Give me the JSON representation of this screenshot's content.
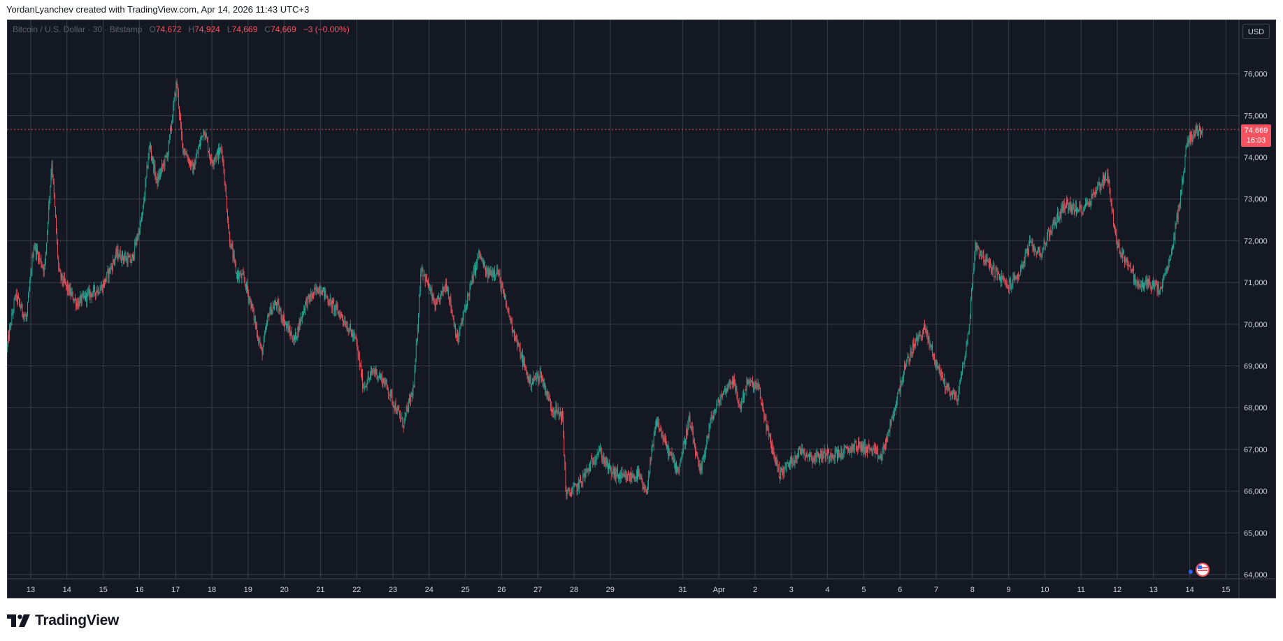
{
  "caption": "YordanLyanchev created with TradingView.com, Apr 14, 2026 11:43 UTC+3",
  "legend": {
    "symbol": "Bitcoin / U.S. Dollar · 30 · Bitstamp",
    "o_label": "O",
    "o_value": "74,672",
    "h_label": "H",
    "h_value": "74,924",
    "l_label": "L",
    "l_value": "74,669",
    "c_label": "C",
    "c_value": "74,669",
    "change": "−3 (−0.00%)"
  },
  "currency_button": "USD",
  "last_price": {
    "value": "74,669",
    "countdown": "16:03"
  },
  "brand": {
    "name": "TradingView",
    "logo_icon": "tradingview-logo-icon"
  },
  "colors": {
    "background": "#141823",
    "grid": "#3b3f4a",
    "up": "#22ab94",
    "down": "#f7525f",
    "axis_text": "#d1d4dc"
  },
  "chart_data": {
    "type": "candlestick",
    "title": "Bitcoin / U.S. Dollar · 30 · Bitstamp",
    "timeframe": "30",
    "ylim": [
      63900,
      77300
    ],
    "y_ticks": [
      64000,
      65000,
      66000,
      67000,
      68000,
      69000,
      70000,
      71000,
      72000,
      73000,
      74000,
      75000,
      76000
    ],
    "y_tick_labels": [
      "64,000",
      "65,000",
      "66,000",
      "67,000",
      "68,000",
      "69,000",
      "70,000",
      "71,000",
      "72,000",
      "73,000",
      "74,000",
      "75,000",
      "76,000"
    ],
    "x_ticks": [
      {
        "label": "13",
        "day": 0
      },
      {
        "label": "14",
        "day": 1
      },
      {
        "label": "15",
        "day": 2
      },
      {
        "label": "16",
        "day": 3
      },
      {
        "label": "17",
        "day": 4
      },
      {
        "label": "18",
        "day": 5
      },
      {
        "label": "19",
        "day": 6
      },
      {
        "label": "20",
        "day": 7
      },
      {
        "label": "21",
        "day": 8
      },
      {
        "label": "22",
        "day": 9
      },
      {
        "label": "23",
        "day": 10
      },
      {
        "label": "24",
        "day": 11
      },
      {
        "label": "25",
        "day": 12
      },
      {
        "label": "26",
        "day": 13
      },
      {
        "label": "27",
        "day": 14
      },
      {
        "label": "28",
        "day": 15
      },
      {
        "label": "29",
        "day": 16
      },
      {
        "label": "31",
        "day": 18
      },
      {
        "label": "Apr",
        "day": 19
      },
      {
        "label": "2",
        "day": 20
      },
      {
        "label": "3",
        "day": 21
      },
      {
        "label": "4",
        "day": 22
      },
      {
        "label": "5",
        "day": 23
      },
      {
        "label": "6",
        "day": 24
      },
      {
        "label": "7",
        "day": 25
      },
      {
        "label": "8",
        "day": 26
      },
      {
        "label": "9",
        "day": 27
      },
      {
        "label": "10",
        "day": 28
      },
      {
        "label": "11",
        "day": 29
      },
      {
        "label": "12",
        "day": 30
      },
      {
        "label": "13",
        "day": 31
      },
      {
        "label": "14",
        "day": 32
      },
      {
        "label": "15",
        "day": 33
      }
    ],
    "x_range_days": [
      -0.65,
      33.45
    ],
    "last_price": 74669,
    "price_path": [
      [
        -0.65,
        69400
      ],
      [
        -0.4,
        70700
      ],
      [
        -0.1,
        70100
      ],
      [
        0.1,
        71900
      ],
      [
        0.4,
        71300
      ],
      [
        0.6,
        73900
      ],
      [
        0.8,
        71200
      ],
      [
        1.0,
        70900
      ],
      [
        1.3,
        70500
      ],
      [
        1.6,
        70700
      ],
      [
        2.0,
        70900
      ],
      [
        2.4,
        71700
      ],
      [
        2.8,
        71500
      ],
      [
        3.1,
        72600
      ],
      [
        3.3,
        74300
      ],
      [
        3.5,
        73400
      ],
      [
        3.8,
        74100
      ],
      [
        4.05,
        75800
      ],
      [
        4.2,
        74300
      ],
      [
        4.5,
        73700
      ],
      [
        4.8,
        74700
      ],
      [
        5.0,
        73900
      ],
      [
        5.3,
        74200
      ],
      [
        5.5,
        72100
      ],
      [
        5.7,
        71200
      ],
      [
        5.9,
        71100
      ],
      [
        6.1,
        70500
      ],
      [
        6.4,
        69300
      ],
      [
        6.6,
        70300
      ],
      [
        6.8,
        70500
      ],
      [
        7.0,
        70100
      ],
      [
        7.3,
        69600
      ],
      [
        7.6,
        70500
      ],
      [
        8.0,
        70900
      ],
      [
        8.3,
        70500
      ],
      [
        8.6,
        70200
      ],
      [
        9.0,
        69600
      ],
      [
        9.2,
        68500
      ],
      [
        9.5,
        68900
      ],
      [
        9.8,
        68600
      ],
      [
        10.0,
        68200
      ],
      [
        10.3,
        67600
      ],
      [
        10.6,
        68500
      ],
      [
        10.8,
        71400
      ],
      [
        11.2,
        70400
      ],
      [
        11.5,
        71000
      ],
      [
        11.8,
        69600
      ],
      [
        12.1,
        70700
      ],
      [
        12.4,
        71700
      ],
      [
        12.6,
        71200
      ],
      [
        12.9,
        71300
      ],
      [
        13.1,
        70600
      ],
      [
        13.5,
        69400
      ],
      [
        13.8,
        68600
      ],
      [
        14.1,
        68800
      ],
      [
        14.4,
        68000
      ],
      [
        14.7,
        67800
      ],
      [
        14.8,
        65900
      ],
      [
        15.1,
        66100
      ],
      [
        15.4,
        66500
      ],
      [
        15.7,
        67000
      ],
      [
        16.0,
        66500
      ],
      [
        16.4,
        66300
      ],
      [
        16.8,
        66400
      ],
      [
        17.0,
        65900
      ],
      [
        17.3,
        67700
      ],
      [
        17.6,
        67000
      ],
      [
        17.9,
        66500
      ],
      [
        18.2,
        67700
      ],
      [
        18.5,
        66400
      ],
      [
        18.8,
        67700
      ],
      [
        19.1,
        68300
      ],
      [
        19.4,
        68700
      ],
      [
        19.6,
        68000
      ],
      [
        19.8,
        68600
      ],
      [
        20.1,
        68500
      ],
      [
        20.4,
        67300
      ],
      [
        20.7,
        66400
      ],
      [
        21.0,
        66700
      ],
      [
        21.3,
        67000
      ],
      [
        21.6,
        66800
      ],
      [
        22.0,
        66900
      ],
      [
        22.4,
        66900
      ],
      [
        22.8,
        67100
      ],
      [
        23.2,
        67000
      ],
      [
        23.5,
        66800
      ],
      [
        23.8,
        67700
      ],
      [
        24.1,
        68800
      ],
      [
        24.4,
        69500
      ],
      [
        24.7,
        69900
      ],
      [
        25.0,
        69100
      ],
      [
        25.3,
        68500
      ],
      [
        25.6,
        68200
      ],
      [
        25.9,
        69700
      ],
      [
        26.1,
        71900
      ],
      [
        26.4,
        71500
      ],
      [
        26.7,
        71200
      ],
      [
        27.0,
        70900
      ],
      [
        27.3,
        71200
      ],
      [
        27.6,
        71900
      ],
      [
        27.9,
        71700
      ],
      [
        28.2,
        72300
      ],
      [
        28.6,
        72900
      ],
      [
        28.9,
        72700
      ],
      [
        29.2,
        72900
      ],
      [
        29.5,
        73300
      ],
      [
        29.75,
        73600
      ],
      [
        30.0,
        71900
      ],
      [
        30.3,
        71500
      ],
      [
        30.6,
        70900
      ],
      [
        30.9,
        71000
      ],
      [
        31.2,
        70800
      ],
      [
        31.5,
        71600
      ],
      [
        31.8,
        73300
      ],
      [
        31.95,
        74400
      ],
      [
        32.15,
        74600
      ],
      [
        32.35,
        74669
      ]
    ]
  }
}
